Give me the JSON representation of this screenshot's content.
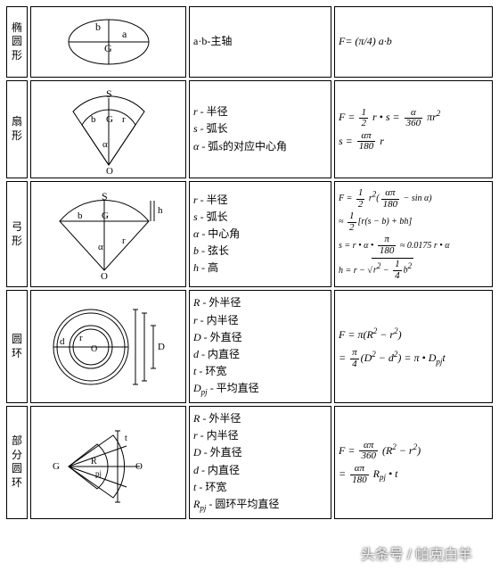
{
  "rows": [
    {
      "name_chars": [
        "椭",
        "圆",
        "形"
      ],
      "diagram": "ellipse",
      "legend_lines": [
        {
          "html": "a·b-主轴"
        }
      ],
      "formula_lines": [
        {
          "html": "F= (π/4) a·b"
        }
      ]
    },
    {
      "name_chars": [
        "扇",
        "形"
      ],
      "diagram": "sector",
      "legend_lines": [
        {
          "html": "<span class='var'>r</span> - 半径"
        },
        {
          "html": "<span class='var'>s</span> - 弧长"
        },
        {
          "html": "<span class='var'>α</span> - 弧<i>s</i>的对应中心角"
        }
      ],
      "formula_lines": [
        {
          "html": "<span class='var'>F</span> = <span class='fr'><span class='n'>1</span><span class='d'>2</span></span> <span class='var'>r</span> • <span class='var'>s</span> = <span class='fr'><span class='n'>α</span><span class='d'>360</span></span> π<span class='var'>r</span><span class='sup'>2</span>"
        },
        {
          "html": "<span class='var'>s</span> = <span class='fr'><span class='n'>απ</span><span class='d'>180</span></span> <span class='var'>r</span>"
        }
      ]
    },
    {
      "name_chars": [
        "弓",
        "形"
      ],
      "diagram": "segment",
      "legend_lines": [
        {
          "html": "<span class='var'>r</span> - 半径"
        },
        {
          "html": "<span class='var'>s</span> - 弧长"
        },
        {
          "html": "<span class='var'>α</span> - 中心角"
        },
        {
          "html": "<span class='var'>b</span> - 弦长"
        },
        {
          "html": "<span class='var'>h</span> - 高"
        }
      ],
      "formula_lines": [
        {
          "html": "<span class='small'><span class='var'>F</span> = <span class='fr'><span class='n'>1</span><span class='d'>2</span></span> <span class='var'>r</span><span class='sup'>2</span>(<span class='fr'><span class='n'>απ</span><span class='d'>180</span></span> − sin α)</span>"
        },
        {
          "html": "<span class='small'>≈ <span class='fr'><span class='n'>1</span><span class='d'>2</span></span>[<span class='var'>r</span>(<span class='var'>s</span> − <span class='var'>b</span>) + <span class='var'>bh</span>]</span>"
        },
        {
          "html": "<span class='small'><span class='var'>s</span> = <span class='var'>r</span> • α • <span class='fr'><span class='n'>π</span><span class='d'>180</span></span> ≈ 0.0175 <span class='var'>r</span> • α</span>"
        },
        {
          "html": "<span class='small'><span class='var'>h</span> = <span class='var'>r</span> − √<span class='sqrt'><span class='var'>r</span><span class='sup'>2</span> − <span class='fr'><span class='n'>1</span><span class='d'>4</span></span><span class='var'>b</span><span class='sup'>2</span></span></span>"
        }
      ]
    },
    {
      "name_chars": [
        "圆",
        "环"
      ],
      "diagram": "annulus",
      "legend_lines": [
        {
          "html": "<span class='var'>R</span> - 外半径"
        },
        {
          "html": "<span class='var'>r</span> - 内半径"
        },
        {
          "html": "<span class='var'>D</span> - 外直径"
        },
        {
          "html": "<span class='var'>d</span> - 内直径"
        },
        {
          "html": "<span class='var'>t</span> - 环宽"
        },
        {
          "html": "<span class='var'>D</span><span class='sub'>pj</span> - 平均直径"
        }
      ],
      "formula_lines": [
        {
          "html": "<span class='var'>F</span> = π(<span class='var'>R</span><span class='sup'>2</span> − <span class='var'>r</span><span class='sup'>2</span>)"
        },
        {
          "html": "= <span class='fr'><span class='n'>π</span><span class='d'>4</span></span>(<span class='var'>D</span><span class='sup'>2</span> − <span class='var'>d</span><span class='sup'>2</span>) = π • <span class='var'>D</span><span class='sub'>pj</span><span class='var'>t</span>"
        }
      ]
    },
    {
      "name_chars": [
        "部",
        "分",
        "圆",
        "环"
      ],
      "diagram": "partial_annulus",
      "legend_lines": [
        {
          "html": "<span class='var'>R</span> - 外半径"
        },
        {
          "html": "<span class='var'>r</span> - 内半径"
        },
        {
          "html": "<span class='var'>D</span> - 外直径"
        },
        {
          "html": "<span class='var'>d</span> - 内直径"
        },
        {
          "html": "<span class='var'>t</span> - 环宽"
        },
        {
          "html": "<span class='var'>R</span><span class='sub'>pj</span> - 圆环平均直径"
        }
      ],
      "formula_lines": [
        {
          "html": "<span class='var'>F</span> = <span class='fr'><span class='n'>απ</span><span class='d'>360</span></span> (<span class='var'>R</span><span class='sup'>2</span> − <span class='var'>r</span><span class='sup'>2</span>)"
        },
        {
          "html": "= <span class='fr'><span class='n'>απ</span><span class='d'>180</span></span> <span class='var'>R</span><span class='sub'>pj</span> • <span class='var'>t</span>"
        }
      ]
    }
  ],
  "watermark": "头条号 / 帕克白羊",
  "style": {
    "border_color": "#000000",
    "background": "#ffffff",
    "font_size_body": 12,
    "font_size_small": 10,
    "row_height_approx": [
      96,
      120,
      130,
      140,
      130
    ],
    "cell_spacing": 3
  }
}
